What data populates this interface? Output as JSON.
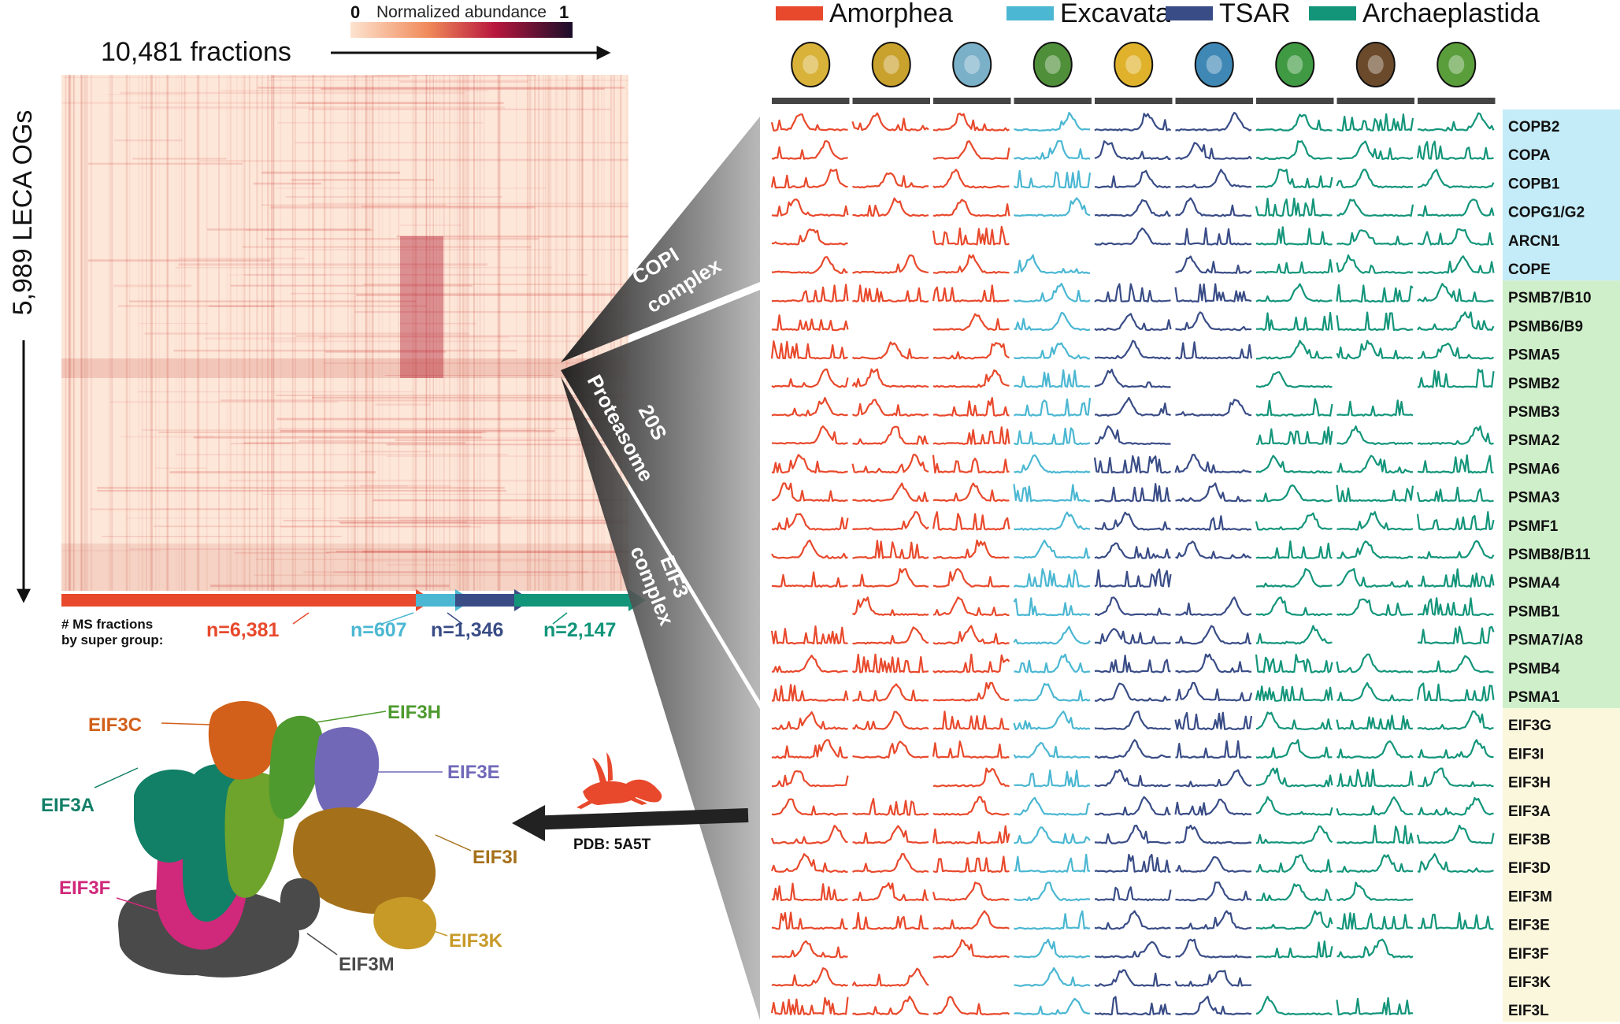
{
  "heatmap": {
    "legend_min": "0",
    "legend_label": "Normalized abundance",
    "legend_max": "1",
    "x_label": "10,481 fractions",
    "y_label": "5,989 LECA OGs",
    "caption_line1": "# MS fractions",
    "caption_line2": "by super group:",
    "group_counts": [
      {
        "label": "n=6,381",
        "value": 6381,
        "color": "#e8492c"
      },
      {
        "label": "n=607",
        "value": 607,
        "color": "#4bb7d2"
      },
      {
        "label": "n=1,346",
        "value": 1346,
        "color": "#394c86"
      },
      {
        "label": "n=2,147",
        "value": 2147,
        "color": "#13957a"
      }
    ]
  },
  "supergroups": [
    {
      "name": "Amorphea",
      "color": "#e8492c",
      "species": 3
    },
    {
      "name": "Excavata",
      "color": "#4bb7d2",
      "species": 1
    },
    {
      "name": "TSAR",
      "color": "#394c86",
      "species": 2
    },
    {
      "name": "Archaeplastida",
      "color": "#13957a",
      "species": 3
    }
  ],
  "species_icons": [
    "octopus-icon",
    "sea-anemone-icon",
    "human-icon",
    "euglena-icon",
    "ciliate-icon",
    "sponge-like-icon",
    "algae-icon",
    "coconut-icon",
    "plant-icon"
  ],
  "complexes": [
    {
      "label1": "COPI",
      "label2": "complex",
      "bg": "#c4ecf8"
    },
    {
      "label1": "20S",
      "label2": "Proteasome",
      "bg": "#cfefca"
    },
    {
      "label1": "EIF3",
      "label2": "complex",
      "bg": "#fbf7dd"
    }
  ],
  "profile_rows": [
    {
      "name": "COPB2",
      "complex": 0
    },
    {
      "name": "COPA",
      "complex": 0
    },
    {
      "name": "COPB1",
      "complex": 0
    },
    {
      "name": "COPG1/G2",
      "complex": 0
    },
    {
      "name": "ARCN1",
      "complex": 0
    },
    {
      "name": "COPE",
      "complex": 0
    },
    {
      "name": "PSMB7/B10",
      "complex": 1
    },
    {
      "name": "PSMB6/B9",
      "complex": 1
    },
    {
      "name": "PSMA5",
      "complex": 1
    },
    {
      "name": "PSMB2",
      "complex": 1
    },
    {
      "name": "PSMB3",
      "complex": 1
    },
    {
      "name": "PSMA2",
      "complex": 1
    },
    {
      "name": "PSMA6",
      "complex": 1
    },
    {
      "name": "PSMA3",
      "complex": 1
    },
    {
      "name": "PSMF1",
      "complex": 1
    },
    {
      "name": "PSMB8/B11",
      "complex": 1
    },
    {
      "name": "PSMA4",
      "complex": 1
    },
    {
      "name": "PSMB1",
      "complex": 1
    },
    {
      "name": "PSMA7/A8",
      "complex": 1
    },
    {
      "name": "PSMB4",
      "complex": 1
    },
    {
      "name": "PSMA1",
      "complex": 1
    },
    {
      "name": "EIF3G",
      "complex": 2
    },
    {
      "name": "EIF3I",
      "complex": 2
    },
    {
      "name": "EIF3H",
      "complex": 2
    },
    {
      "name": "EIF3A",
      "complex": 2
    },
    {
      "name": "EIF3B",
      "complex": 2
    },
    {
      "name": "EIF3D",
      "complex": 2
    },
    {
      "name": "EIF3M",
      "complex": 2
    },
    {
      "name": "EIF3E",
      "complex": 2
    },
    {
      "name": "EIF3F",
      "complex": 2
    },
    {
      "name": "EIF3K",
      "complex": 2
    },
    {
      "name": "EIF3L",
      "complex": 2
    }
  ],
  "structure": {
    "pdb_label": "PDB: 5A5T",
    "subunits": [
      {
        "name": "EIF3C",
        "color": "#d2601a"
      },
      {
        "name": "EIF3H",
        "color": "#4e9a2f"
      },
      {
        "name": "EIF3E",
        "color": "#7168b8"
      },
      {
        "name": "EIF3A",
        "color": "#127f67"
      },
      {
        "name": "EIF3I",
        "color": "#a5701a"
      },
      {
        "name": "EIF3F",
        "color": "#d0287a"
      },
      {
        "name": "EIF3K",
        "color": "#c79a28"
      },
      {
        "name": "EIF3M",
        "color": "#4a4a4a"
      }
    ]
  }
}
